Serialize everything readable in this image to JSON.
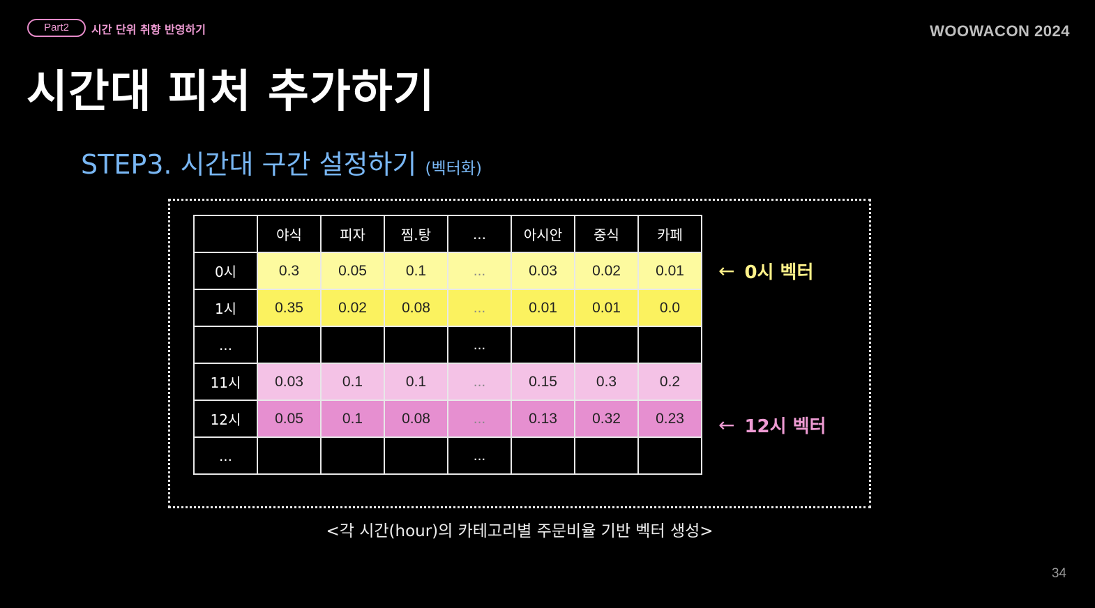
{
  "header": {
    "badge": "Part2",
    "section": "시간 단위 취향 반영하기",
    "brand": "WOOWACON 2024"
  },
  "title": "시간대 피처 추가하기",
  "step": {
    "title": "STEP3. 시간대 구간 설정하기",
    "note": "(벡터화)"
  },
  "table": {
    "columns": [
      "",
      "야식",
      "피자",
      "찜.탕",
      "...",
      "아시안",
      "중식",
      "카페"
    ],
    "rows": [
      {
        "label": "0시",
        "values": [
          "0.3",
          "0.05",
          "0.1",
          "...",
          "0.03",
          "0.02",
          "0.01"
        ]
      },
      {
        "label": "1시",
        "values": [
          "0.35",
          "0.02",
          "0.08",
          "...",
          "0.01",
          "0.01",
          "0.0"
        ]
      },
      {
        "label": "...",
        "values": [
          "",
          "",
          "",
          "...",
          "",
          "",
          ""
        ]
      },
      {
        "label": "11시",
        "values": [
          "0.03",
          "0.1",
          "0.1",
          "...",
          "0.15",
          "0.3",
          "0.2"
        ]
      },
      {
        "label": "12시",
        "values": [
          "0.05",
          "0.1",
          "0.08",
          "...",
          "0.13",
          "0.32",
          "0.23"
        ]
      },
      {
        "label": "...",
        "values": [
          "",
          "",
          "",
          "...",
          "",
          "",
          ""
        ]
      }
    ]
  },
  "annotations": {
    "vector0": "0시 벡터",
    "vector12": "12시 벡터",
    "arrow": "←"
  },
  "caption": "<각 시간(hour)의 카테고리별 주문비율 기반 벡터 생성>",
  "page_number": "34",
  "colors": {
    "background": "#000000",
    "accent_pink": "#ee9bd3",
    "accent_blue": "#79b7f4",
    "row0_fill": "#fdfa9f",
    "row1_fill": "#fbf25f",
    "row11_fill": "#f4c2e6",
    "row12_fill": "#e68fd0"
  }
}
